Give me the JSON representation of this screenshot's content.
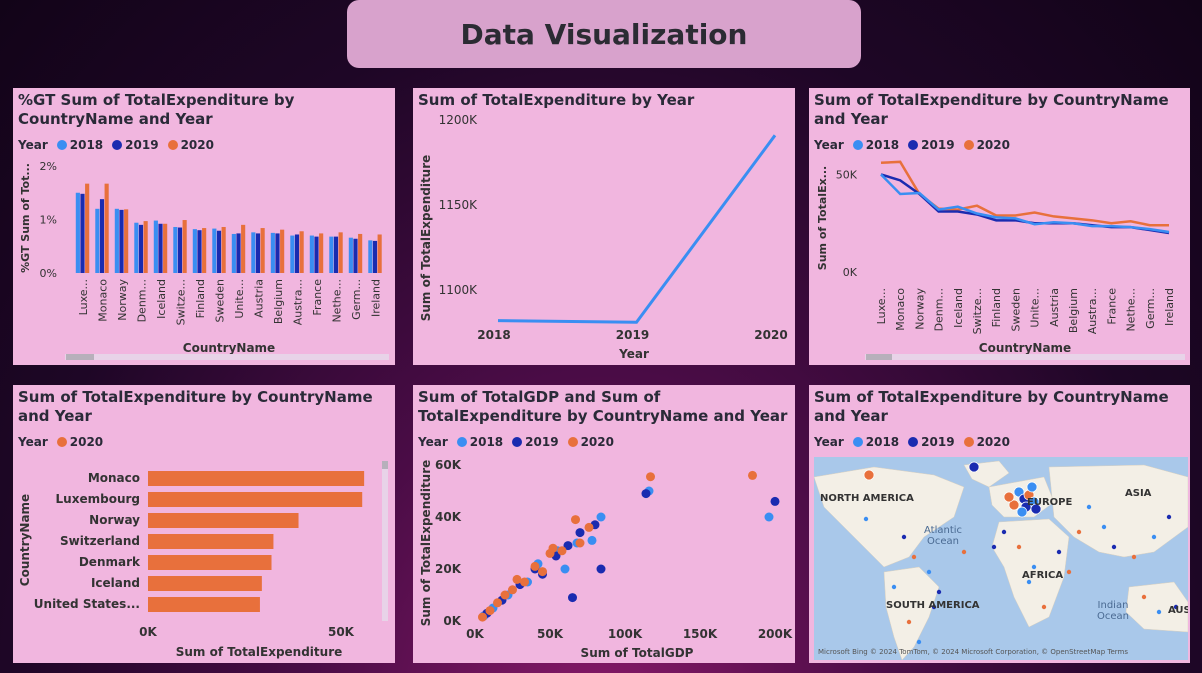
{
  "page": {
    "title": "Data Visualization"
  },
  "colors": {
    "y2018": "#3a8ef2",
    "y2019": "#1a2bb0",
    "y2020": "#e8703c",
    "panel": "#f1b6df"
  },
  "legend": {
    "label": "Year",
    "y2018": "2018",
    "y2019": "2019",
    "y2020": "2020"
  },
  "chart_data": [
    {
      "id": "c1",
      "type": "bar",
      "title": "%GT Sum of TotalExpenditure by CountryName and Year",
      "xlabel": "CountryName",
      "ylabel": "%GT Sum of Tot...",
      "yticks": [
        "0%",
        "1%",
        "2%"
      ],
      "ylim": [
        0,
        2
      ],
      "categories": [
        "Luxe...",
        "Monaco",
        "Norway",
        "Denm...",
        "Iceland",
        "Switze...",
        "Finland",
        "Sweden",
        "Unite...",
        "Austria",
        "Belgium",
        "Austra...",
        "France",
        "Nethe...",
        "Germ...",
        "Ireland"
      ],
      "series": [
        {
          "name": "2018",
          "values": [
            1.5,
            1.2,
            1.2,
            0.94,
            0.98,
            0.86,
            0.82,
            0.83,
            0.73,
            0.76,
            0.75,
            0.7,
            0.7,
            0.68,
            0.66,
            0.61
          ]
        },
        {
          "name": "2019",
          "values": [
            1.48,
            1.38,
            1.18,
            0.9,
            0.92,
            0.85,
            0.8,
            0.79,
            0.74,
            0.74,
            0.74,
            0.72,
            0.68,
            0.68,
            0.64,
            0.6
          ]
        },
        {
          "name": "2020",
          "values": [
            1.67,
            1.67,
            1.19,
            0.97,
            0.92,
            0.99,
            0.84,
            0.86,
            0.9,
            0.84,
            0.81,
            0.78,
            0.74,
            0.76,
            0.73,
            0.72
          ]
        }
      ]
    },
    {
      "id": "c2",
      "type": "line",
      "title": "Sum of TotalExpenditure by Year",
      "xlabel": "Year",
      "ylabel": "Sum of TotalExpenditure",
      "x": [
        "2018",
        "2019",
        "2020"
      ],
      "values": [
        1082000,
        1081000,
        1191000
      ],
      "yticks": [
        "1100K",
        "1150K",
        "1200K"
      ],
      "ytick_values": [
        1100000,
        1150000,
        1200000
      ]
    },
    {
      "id": "c3",
      "type": "line",
      "title": "Sum of TotalExpenditure by CountryName and Year",
      "xlabel": "CountryName",
      "ylabel": "Sum of TotalEx...",
      "yticks": [
        "0K",
        "50K"
      ],
      "ylim": [
        0,
        60000
      ],
      "categories": [
        "Luxe...",
        "Monaco",
        "Norway",
        "Denm...",
        "Iceland",
        "Switze...",
        "Finland",
        "Sweden",
        "Unite...",
        "Austria",
        "Belgium",
        "Austra...",
        "France",
        "Nethe...",
        "Germ...",
        "Ireland"
      ],
      "series": [
        {
          "name": "2018",
          "values": [
            50000,
            40000,
            40500,
            32000,
            33500,
            30000,
            28000,
            27500,
            24500,
            25500,
            25000,
            23500,
            23500,
            23000,
            22000,
            20500
          ]
        },
        {
          "name": "2019",
          "values": [
            50000,
            47000,
            40000,
            31000,
            31000,
            29500,
            26500,
            26500,
            25000,
            25000,
            25000,
            24000,
            23000,
            23000,
            21500,
            20000
          ]
        },
        {
          "name": "2020",
          "values": [
            56000,
            56500,
            40000,
            32500,
            32000,
            34000,
            29000,
            29000,
            30500,
            28500,
            27500,
            26500,
            25000,
            26000,
            24000,
            24000
          ]
        }
      ]
    },
    {
      "id": "c4",
      "type": "bar",
      "title": "Sum of TotalExpenditure by CountryName and Year",
      "xlabel": "Sum of TotalExpenditure",
      "ylabel": "CountryName",
      "xticks": [
        "0K",
        "50K"
      ],
      "xlim": [
        0,
        60000
      ],
      "categories": [
        "Monaco",
        "Luxembourg",
        "Norway",
        "Switzerland",
        "Denmark",
        "Iceland",
        "United States..."
      ],
      "series": [
        {
          "name": "2020",
          "values": [
            56000,
            55500,
            39000,
            32500,
            32000,
            29500,
            29000
          ]
        }
      ]
    },
    {
      "id": "c5",
      "type": "scatter",
      "title": "Sum of TotalGDP and Sum of TotalExpenditure by CountryName and Year",
      "xlabel": "Sum of TotalGDP",
      "ylabel": "Sum of TotalExpenditure",
      "xticks": [
        "0K",
        "50K",
        "100K",
        "150K",
        "200K"
      ],
      "xlim": [
        0,
        200000
      ],
      "yticks": [
        "0K",
        "20K",
        "40K",
        "60K"
      ],
      "ylim": [
        0,
        60000
      ],
      "series": [
        {
          "name": "2018",
          "points": [
            [
              116000,
              50000
            ],
            [
              196000,
              40000
            ],
            [
              84000,
              40000
            ],
            [
              68000,
              30000
            ],
            [
              60000,
              20000
            ],
            [
              55000,
              27000
            ],
            [
              35000,
              15000
            ],
            [
              22000,
              10000
            ],
            [
              12000,
              5000
            ],
            [
              6000,
              2000
            ],
            [
              42000,
              22000
            ],
            [
              78000,
              31000
            ]
          ]
        },
        {
          "name": "2019",
          "points": [
            [
              114000,
              49000
            ],
            [
              200000,
              46000
            ],
            [
              80000,
              37000
            ],
            [
              70000,
              34000
            ],
            [
              62000,
              29000
            ],
            [
              54000,
              25000
            ],
            [
              65000,
              9000
            ],
            [
              45000,
              18000
            ],
            [
              30000,
              14000
            ],
            [
              18000,
              8000
            ],
            [
              8000,
              3000
            ],
            [
              40000,
              20000
            ],
            [
              84000,
              20000
            ]
          ]
        },
        {
          "name": "2020",
          "points": [
            [
              117000,
              55500
            ],
            [
              185000,
              56000
            ],
            [
              67000,
              39000
            ],
            [
              70000,
              30000
            ],
            [
              58000,
              27000
            ],
            [
              50000,
              26000
            ],
            [
              40000,
              21000
            ],
            [
              45000,
              19000
            ],
            [
              33000,
              15000
            ],
            [
              25000,
              12000
            ],
            [
              15000,
              7000
            ],
            [
              10000,
              4000
            ],
            [
              5000,
              1500
            ],
            [
              20000,
              10000
            ],
            [
              52000,
              28000
            ],
            [
              76000,
              36000
            ],
            [
              28000,
              16000
            ]
          ]
        }
      ]
    },
    {
      "id": "c6",
      "type": "map",
      "title": "Sum of TotalExpenditure by CountryName and Year",
      "labels": [
        "NORTH AMERICA",
        "EUROPE",
        "ASIA",
        "AFRICA",
        "SOUTH AMERICA",
        "AUST"
      ],
      "seas": [
        "Atlantic Ocean",
        "Indian Ocean"
      ],
      "attribution": "Microsoft Bing  © 2024 TomTom, © 2024 Microsoft Corporation, © OpenStreetMap   Terms"
    }
  ]
}
